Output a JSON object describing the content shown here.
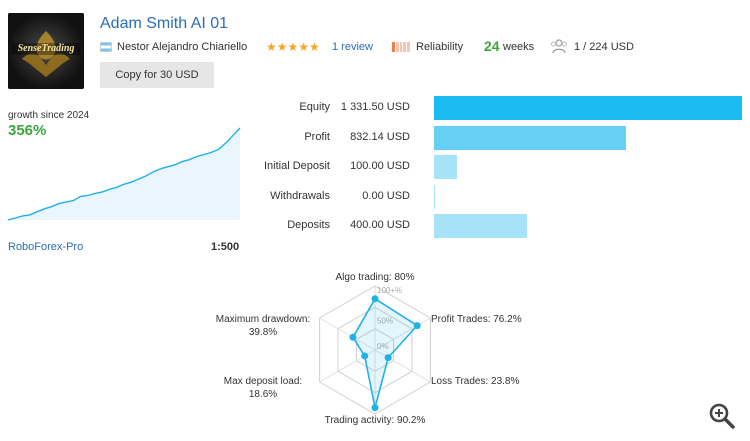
{
  "header": {
    "title": "Adam Smith AI 01",
    "logo_text": "SenseTrading",
    "author": "Nestor Alejandro Chiariello",
    "rating_stars": 5,
    "stars_glyphs": "★★★★★",
    "reviews": "1 review",
    "reliability": "Reliability",
    "reliability_level": 0.2,
    "weeks_value": "24",
    "weeks_label": "weeks",
    "subscribers": "1 / 224 USD",
    "copy_button": "Copy for 30 USD"
  },
  "growth": {
    "label": "growth since 2024",
    "value": "356%",
    "broker": "RoboForex-Pro",
    "leverage": "1:500",
    "line_color": "#1fb1e8",
    "series": [
      0,
      4,
      8,
      10,
      16,
      22,
      26,
      32,
      35,
      38,
      46,
      48,
      52,
      55,
      60,
      64,
      70,
      74,
      80,
      86,
      94,
      100,
      104,
      108,
      114,
      118,
      124,
      128,
      132,
      138,
      150,
      165,
      180
    ]
  },
  "stats": [
    {
      "label": "Equity",
      "value": "1 331.50 USD",
      "amount": 1331.5,
      "color": "#1bbcef"
    },
    {
      "label": "Profit",
      "value": "832.14 USD",
      "amount": 832.14,
      "color": "#66d0f4"
    },
    {
      "label": "Initial Deposit",
      "value": "100.00 USD",
      "amount": 100.0,
      "color": "#a6e2f8"
    },
    {
      "label": "Withdrawals",
      "value": "0.00 USD",
      "amount": 0.0,
      "color": "#a6e2f8"
    },
    {
      "label": "Deposits",
      "value": "400.00 USD",
      "amount": 400.0,
      "color": "#a6e2f8"
    }
  ],
  "radar": {
    "ticks": [
      "100+%",
      "50%",
      "0%"
    ],
    "axes": [
      {
        "label": "Algo trading: 80%",
        "value": 0.8
      },
      {
        "label": "Profit Trades: 76.2%",
        "value": 0.762
      },
      {
        "label": "Loss Trades: 23.8%",
        "value": 0.238
      },
      {
        "label": "Trading activity: 90.2%",
        "value": 0.902
      },
      {
        "label": "Max deposit load:\n18.6%",
        "value": 0.186
      },
      {
        "label": "Maximum drawdown:\n39.8%",
        "value": 0.398
      }
    ],
    "line_color": "#1fb1e8"
  },
  "icons": {
    "zoom": "zoom-in-icon",
    "subscribers": "subscribers-icon",
    "flag": "argentina-flag-icon"
  }
}
